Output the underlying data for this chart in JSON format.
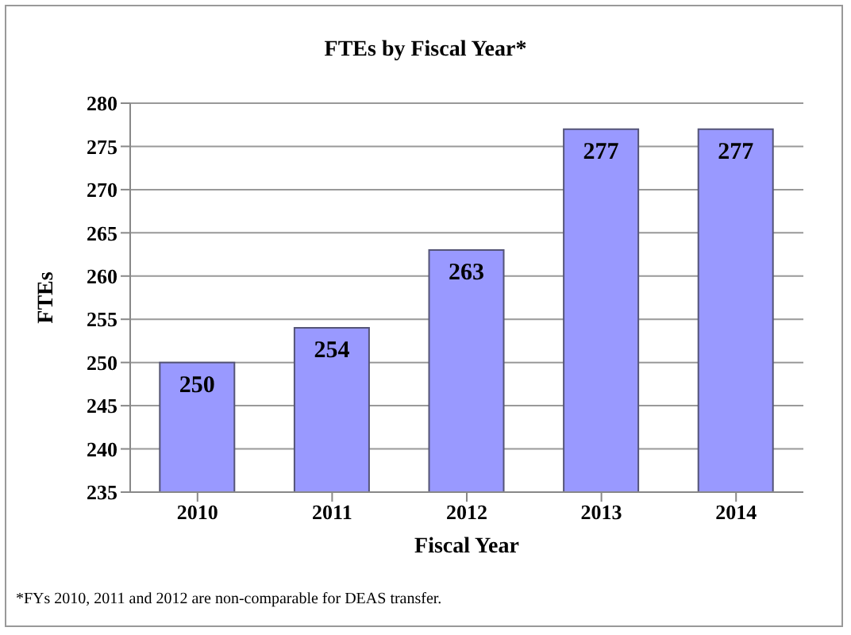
{
  "chart_data": {
    "type": "bar",
    "title": "FTEs by Fiscal Year*",
    "xlabel": "Fiscal Year",
    "ylabel": "FTEs",
    "categories": [
      "2010",
      "2011",
      "2012",
      "2013",
      "2014"
    ],
    "values": [
      250,
      254,
      263,
      277,
      277
    ],
    "color": "#9999ff",
    "ylim": [
      235,
      280
    ],
    "yticks": [
      235,
      240,
      245,
      250,
      255,
      260,
      265,
      270,
      275,
      280
    ],
    "grid": "y",
    "data_labels": true,
    "annotations": [
      "*FYs 2010, 2011 and 2012 are non-comparable for DEAS transfer."
    ]
  }
}
